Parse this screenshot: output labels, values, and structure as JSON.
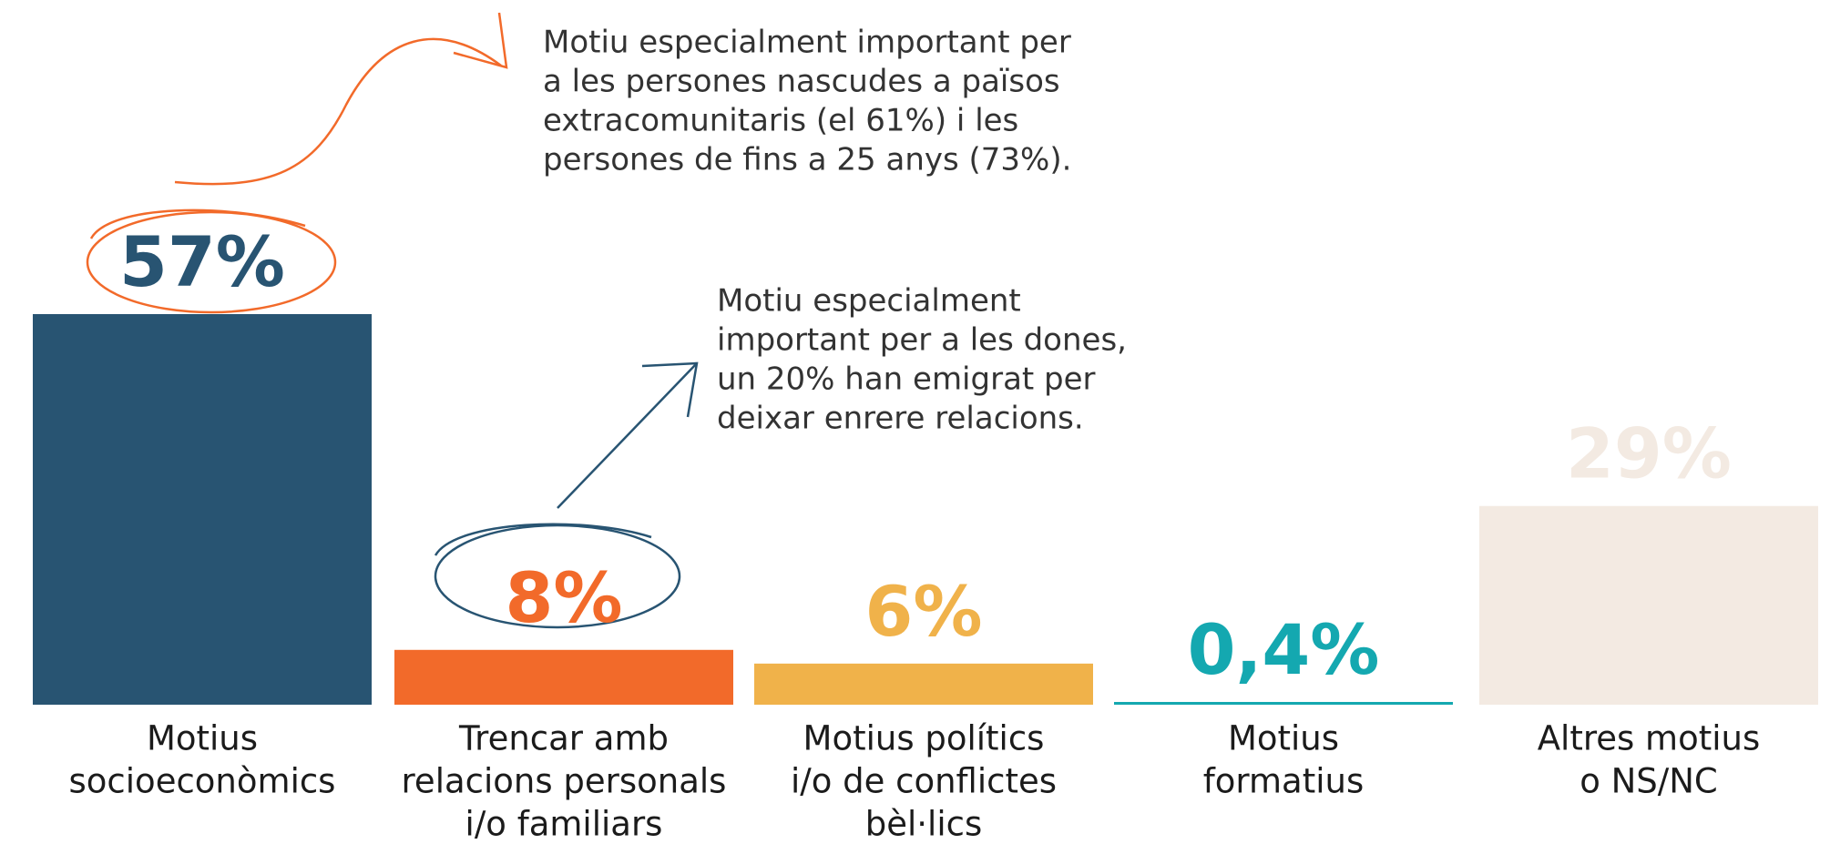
{
  "chart_data": {
    "type": "bar",
    "categories": [
      [
        "Motius",
        "socioeconòmics"
      ],
      [
        "Trencar amb",
        "relacions personals",
        "i/o familiars"
      ],
      [
        "Motius polítics",
        "i/o de conflictes",
        "bèl·lics"
      ],
      [
        "Motius",
        "formatius"
      ],
      [
        "Altres motius",
        "o NS/NC"
      ]
    ],
    "values": [
      57,
      8,
      6,
      0.4,
      29
    ],
    "value_labels": [
      "57%",
      "8%",
      "6%",
      "0,4%",
      "29%"
    ],
    "colors": [
      "#285472",
      "#f26a2a",
      "#f0b24a",
      "#14a8b0",
      "#f3eae2"
    ],
    "annotations": [
      [
        "Motiu especialment important per",
        "a les persones nascudes a països",
        "extracomunitaris (el 61%) i les",
        "persones de fins a 25 anys (73%)."
      ],
      [
        "Motiu especialment",
        "important per a les dones,",
        "un 20% han emigrat per",
        "deixar enrere relacions."
      ]
    ]
  }
}
